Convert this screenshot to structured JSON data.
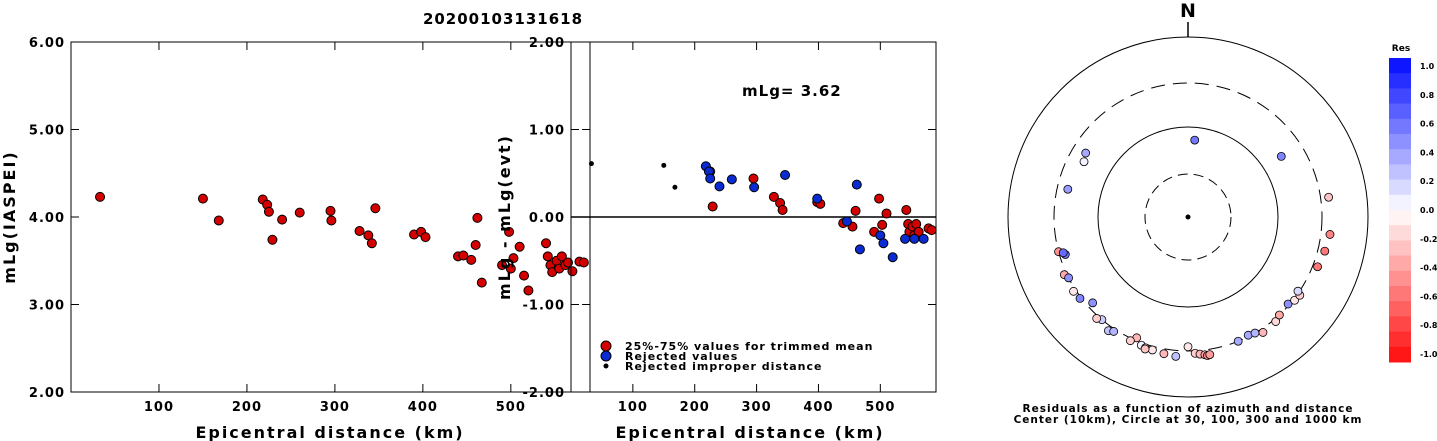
{
  "title": "20200103131618",
  "chart_data": [
    {
      "type": "scatter",
      "name": "mlg-vs-distance",
      "xlabel": "Epicentral distance (km)",
      "ylabel": "mLg(IASPEI)",
      "xlim": [
        0,
        590
      ],
      "ylim": [
        2.0,
        6.0
      ],
      "xticks": [
        "100",
        "200",
        "300",
        "400",
        "500"
      ],
      "yticks": [
        "2.00",
        "3.00",
        "4.00",
        "5.00",
        "6.00"
      ],
      "points": [
        [
          33,
          4.23
        ],
        [
          150,
          4.21
        ],
        [
          168,
          3.96
        ],
        [
          218,
          4.2
        ],
        [
          223,
          4.14
        ],
        [
          225,
          4.06
        ],
        [
          229,
          3.74
        ],
        [
          240,
          3.97
        ],
        [
          260,
          4.05
        ],
        [
          295,
          4.07
        ],
        [
          296,
          3.96
        ],
        [
          328,
          3.84
        ],
        [
          338,
          3.79
        ],
        [
          342,
          3.7
        ],
        [
          346,
          4.1
        ],
        [
          390,
          3.8
        ],
        [
          398,
          3.83
        ],
        [
          403,
          3.77
        ],
        [
          440,
          3.55
        ],
        [
          446,
          3.56
        ],
        [
          455,
          3.51
        ],
        [
          460,
          3.68
        ],
        [
          462,
          3.99
        ],
        [
          467,
          3.25
        ],
        [
          490,
          3.45
        ],
        [
          498,
          3.83
        ],
        [
          500,
          3.41
        ],
        [
          503,
          3.53
        ],
        [
          510,
          3.66
        ],
        [
          515,
          3.33
        ],
        [
          520,
          3.16
        ],
        [
          540,
          3.7
        ],
        [
          542,
          3.55
        ],
        [
          545,
          3.45
        ],
        [
          547,
          3.37
        ],
        [
          552,
          3.5
        ],
        [
          555,
          3.41
        ],
        [
          558,
          3.55
        ],
        [
          562,
          3.45
        ],
        [
          565,
          3.48
        ],
        [
          570,
          3.38
        ],
        [
          578,
          3.49
        ],
        [
          583,
          3.48
        ]
      ]
    },
    {
      "type": "scatter",
      "name": "residual-vs-distance",
      "xlabel": "Epicentral distance (km)",
      "ylabel": "mLg - mLg(evt)",
      "xlim": [
        0,
        590
      ],
      "ylim": [
        -2.0,
        2.0
      ],
      "xticks": [
        "100",
        "200",
        "300",
        "400",
        "500"
      ],
      "yticks": [
        "-2.00",
        "-1.00",
        "0.00",
        "1.00",
        "2.00"
      ],
      "annotation": "mLg= 3.62",
      "legend": [
        "25%-75% values for trimmed mean",
        "Rejected values",
        "Rejected improper distance"
      ],
      "red": [
        [
          225,
          0.52
        ],
        [
          229,
          0.12
        ],
        [
          295,
          0.44
        ],
        [
          328,
          0.23
        ],
        [
          338,
          0.16
        ],
        [
          342,
          0.08
        ],
        [
          398,
          0.17
        ],
        [
          403,
          0.15
        ],
        [
          440,
          -0.07
        ],
        [
          455,
          -0.11
        ],
        [
          460,
          0.07
        ],
        [
          490,
          -0.17
        ],
        [
          498,
          0.21
        ],
        [
          503,
          -0.09
        ],
        [
          510,
          0.04
        ],
        [
          542,
          0.08
        ],
        [
          545,
          -0.08
        ],
        [
          547,
          -0.17
        ],
        [
          552,
          -0.11
        ],
        [
          555,
          -0.21
        ],
        [
          558,
          -0.08
        ],
        [
          562,
          -0.17
        ],
        [
          578,
          -0.13
        ],
        [
          583,
          -0.15
        ]
      ],
      "blue": [
        [
          218,
          0.58
        ],
        [
          223,
          0.52
        ],
        [
          225,
          0.44
        ],
        [
          240,
          0.35
        ],
        [
          260,
          0.43
        ],
        [
          296,
          0.34
        ],
        [
          346,
          0.48
        ],
        [
          398,
          0.21
        ],
        [
          446,
          -0.05
        ],
        [
          462,
          0.37
        ],
        [
          467,
          -0.37
        ],
        [
          500,
          -0.21
        ],
        [
          505,
          -0.3
        ],
        [
          520,
          -0.46
        ],
        [
          540,
          -0.25
        ],
        [
          555,
          -0.25
        ],
        [
          570,
          -0.25
        ]
      ],
      "black": [
        [
          33,
          0.61
        ],
        [
          150,
          0.59
        ],
        [
          168,
          0.34
        ]
      ]
    },
    {
      "type": "polar-scatter",
      "name": "residuals-azimuth-distance",
      "north_label": "N",
      "caption_line1": "Residuals as a function of azimuth and distance",
      "caption_line2": "Center (10km), Circle at 30, 100, 300 and 1000 km",
      "rings_km": [
        30,
        100,
        300,
        1000
      ],
      "colorbar_title": "Res",
      "colorbar_ticks": [
        "1.0",
        "0.8",
        "0.6",
        "0.4",
        "0.2",
        "0.0",
        "-0.2",
        "-0.4",
        "-0.6",
        "-0.8",
        "-1.0"
      ],
      "stations": [
        {
          "az": 5,
          "dist": 72,
          "res": 0.55
        },
        {
          "az": 302,
          "dist": 215,
          "res": 0.35
        },
        {
          "az": 283,
          "dist": 230,
          "res": 0.4
        },
        {
          "az": 298,
          "dist": 200,
          "res": 0.05
        },
        {
          "az": 255,
          "dist": 300,
          "res": -0.45
        },
        {
          "az": 253,
          "dist": 260,
          "res": 0.55
        },
        {
          "az": 254,
          "dist": 270,
          "res": 0.6
        },
        {
          "az": 245,
          "dist": 320,
          "res": -0.35
        },
        {
          "az": 243,
          "dist": 300,
          "res": 0.45
        },
        {
          "az": 233,
          "dist": 310,
          "res": 0.5
        },
        {
          "az": 237,
          "dist": 320,
          "res": -0.1
        },
        {
          "az": 228,
          "dist": 260,
          "res": 0.45
        },
        {
          "az": 220,
          "dist": 300,
          "res": 0.2
        },
        {
          "az": 222,
          "dist": 320,
          "res": -0.2
        },
        {
          "az": 215,
          "dist": 340,
          "res": 0.25
        },
        {
          "az": 213,
          "dist": 320,
          "res": 0.3
        },
        {
          "az": 203,
          "dist": 280,
          "res": -0.3
        },
        {
          "az": 205,
          "dist": 320,
          "res": -0.2
        },
        {
          "az": 200,
          "dist": 320,
          "res": 0.05
        },
        {
          "az": 198,
          "dist": 330,
          "res": -0.05
        },
        {
          "az": 195,
          "dist": 330,
          "res": -0.1
        },
        {
          "az": 190,
          "dist": 340,
          "res": -0.3
        },
        {
          "az": 185,
          "dist": 350,
          "res": 0.25
        },
        {
          "az": 198,
          "dist": 340,
          "res": -0.25
        },
        {
          "az": 180,
          "dist": 270,
          "res": -0.1
        },
        {
          "az": 177,
          "dist": 320,
          "res": -0.2
        },
        {
          "az": 175,
          "dist": 330,
          "res": -0.3
        },
        {
          "az": 173,
          "dist": 340,
          "res": -0.35
        },
        {
          "az": 172,
          "dist": 350,
          "res": -0.5
        },
        {
          "az": 171,
          "dist": 345,
          "res": -0.4
        },
        {
          "az": 158,
          "dist": 300,
          "res": 0.35
        },
        {
          "az": 153,
          "dist": 290,
          "res": 0.35
        },
        {
          "az": 150,
          "dist": 300,
          "res": 0.3
        },
        {
          "az": 147,
          "dist": 330,
          "res": -0.3
        },
        {
          "az": 140,
          "dist": 320,
          "res": -0.15
        },
        {
          "az": 137,
          "dist": 300,
          "res": -0.35
        },
        {
          "az": 131,
          "dist": 290,
          "res": 0.45
        },
        {
          "az": 128,
          "dist": 310,
          "res": -0.1
        },
        {
          "az": 125,
          "dist": 320,
          "res": -0.2
        },
        {
          "az": 124,
          "dist": 290,
          "res": 0.15
        },
        {
          "az": 111,
          "dist": 340,
          "res": -0.55
        },
        {
          "az": 104,
          "dist": 360,
          "res": -0.55
        },
        {
          "az": 97,
          "dist": 380,
          "res": -0.5
        },
        {
          "az": 82,
          "dist": 370,
          "res": -0.25
        },
        {
          "az": 57,
          "dist": 170,
          "res": 0.5
        }
      ]
    }
  ]
}
